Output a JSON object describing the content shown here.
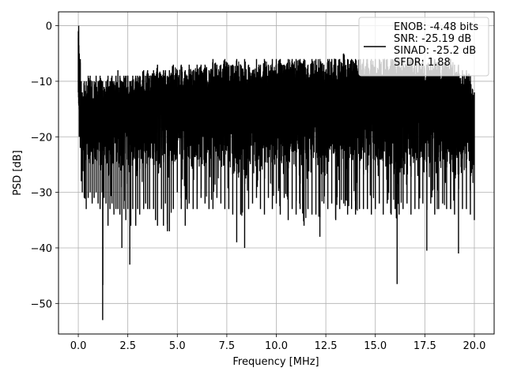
{
  "chart_data": {
    "type": "line",
    "title": "",
    "xlabel": "Frequency [MHz]",
    "ylabel": "PSD [dB]",
    "xlim": [
      -1.0,
      21.0
    ],
    "ylim": [
      -55.5,
      2.5
    ],
    "xticks": [
      0.0,
      2.5,
      5.0,
      7.5,
      10.0,
      12.5,
      15.0,
      17.5,
      20.0
    ],
    "xtick_labels": [
      "0.0",
      "2.5",
      "5.0",
      "7.5",
      "10.0",
      "12.5",
      "15.0",
      "17.5",
      "20.0"
    ],
    "yticks": [
      0,
      -10,
      -20,
      -30,
      -40,
      -50
    ],
    "ytick_labels": [
      "0",
      "−10",
      "−20",
      "−30",
      "−40",
      "−50"
    ],
    "grid": true,
    "legend_position": "top-right",
    "line_color": "#000000",
    "legend_lines": [
      "ENOB: -4.48 bits",
      "SNR: -25.19 dB",
      "SINAD: -25.2 dB",
      "SFDR: 1.88"
    ],
    "series": [
      {
        "x": [
          0.0,
          0.02,
          0.05,
          0.1,
          0.15,
          0.2,
          0.3,
          0.4,
          0.5,
          0.6,
          0.7,
          0.8,
          0.9,
          1.0,
          1.1,
          1.2,
          1.23,
          1.3,
          1.4,
          1.5,
          1.6,
          1.7,
          1.8,
          1.9,
          2.0,
          2.1,
          2.2,
          2.3,
          2.4,
          2.5,
          2.6,
          2.65,
          2.75,
          2.9,
          3.0,
          3.1,
          3.3,
          3.4,
          3.5,
          3.6,
          3.8,
          3.9,
          4.0,
          4.2,
          4.3,
          4.4,
          4.5,
          4.6,
          4.8,
          5.0,
          5.2,
          5.4,
          5.5,
          5.6,
          5.8,
          6.0,
          6.2,
          6.4,
          6.6,
          6.8,
          7.0,
          7.2,
          7.4,
          7.6,
          7.8,
          8.0,
          8.2,
          8.4,
          8.6,
          8.8,
          9.0,
          9.2,
          9.4,
          9.6,
          9.8,
          10.0,
          10.2,
          10.4,
          10.6,
          10.8,
          11.0,
          11.2,
          11.4,
          11.6,
          11.8,
          12.0,
          12.2,
          12.4,
          12.6,
          12.8,
          13.0,
          13.2,
          13.4,
          13.6,
          13.8,
          14.0,
          14.2,
          14.4,
          14.6,
          14.8,
          15.0,
          15.2,
          15.4,
          15.6,
          15.8,
          16.0,
          16.1,
          16.2,
          16.4,
          16.6,
          16.8,
          17.0,
          17.2,
          17.4,
          17.6,
          17.8,
          18.0,
          18.2,
          18.4,
          18.6,
          18.8,
          19.0,
          19.2,
          19.4,
          19.6,
          19.8,
          20.0
        ],
        "max": [
          -1,
          0,
          -5,
          -6,
          -10,
          -12,
          -10,
          -10,
          -9,
          -9,
          -10,
          -10,
          -9,
          -10,
          -9,
          -10,
          -10,
          -11,
          -10,
          -9,
          -10,
          -9,
          -10,
          -9,
          -8,
          -9,
          -10,
          -9,
          -9,
          -9,
          -10,
          -10,
          -9,
          -9,
          -9,
          -9,
          -8,
          -9,
          -8,
          -9,
          -8,
          -9,
          -7,
          -9,
          -8,
          -8,
          -9,
          -8,
          -7,
          -8,
          -7,
          -8,
          -9,
          -7,
          -8,
          -7,
          -7,
          -7,
          -8,
          -6,
          -7,
          -7,
          -6,
          -7,
          -7,
          -6,
          -7,
          -6,
          -7,
          -8,
          -6,
          -7,
          -6,
          -7,
          -6,
          -6,
          -6,
          -7,
          -6,
          -6,
          -6,
          -6,
          -6,
          -7,
          -6,
          -6,
          -6,
          -7,
          -6,
          -6,
          -6,
          -6,
          -5,
          -6,
          -6,
          -6,
          -6,
          -6,
          -6,
          -6,
          -6,
          -6,
          -6,
          -6,
          -6,
          -6,
          -6,
          -6,
          -6,
          -6,
          -6,
          -6,
          -6,
          -6,
          -7,
          -6,
          -6,
          -6,
          -7,
          -6,
          -6,
          -7,
          -7,
          -8,
          -8,
          -9,
          -12
        ],
        "min": [
          -12,
          -14,
          -20,
          -22,
          -28,
          -30,
          -31,
          -33,
          -31,
          -30,
          -32,
          -31,
          -30,
          -32,
          -33,
          -30,
          -53,
          -31,
          -32,
          -36,
          -33,
          -32,
          -34,
          -33,
          -33,
          -34,
          -40,
          -33,
          -35,
          -33,
          -43,
          -36,
          -33,
          -36,
          -33,
          -34,
          -33,
          -32,
          -33,
          -33,
          -33,
          -35,
          -36,
          -33,
          -36,
          -32,
          -37,
          -37,
          -33,
          -30,
          -33,
          -36,
          -33,
          -32,
          -33,
          -33,
          -31,
          -32,
          -33,
          -33,
          -31,
          -32,
          -33,
          -33,
          -34,
          -39,
          -34,
          -40,
          -33,
          -32,
          -31,
          -33,
          -34,
          -31,
          -33,
          -32,
          -34,
          -31,
          -35,
          -33,
          -34,
          -33,
          -36,
          -33,
          -34,
          -34,
          -38,
          -32,
          -33,
          -32,
          -35,
          -33,
          -32,
          -34,
          -33,
          -34,
          -33,
          -33,
          -33,
          -34,
          -33,
          -32,
          -34,
          -32,
          -34,
          -33,
          -46.5,
          -34,
          -33,
          -32,
          -34,
          -33,
          -33,
          -32,
          -40.5,
          -32,
          -34,
          -33,
          -32,
          -33,
          -33,
          -34,
          -41,
          -33,
          -33,
          -34,
          -35
        ]
      }
    ]
  }
}
